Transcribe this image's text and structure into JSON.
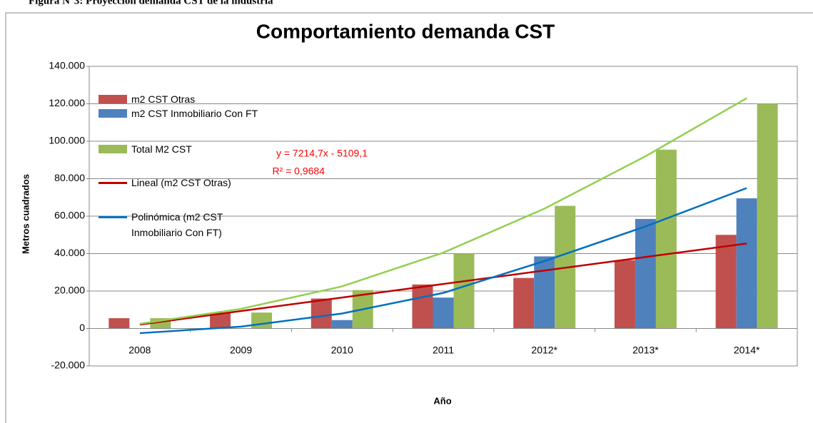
{
  "caption": "Figura N°3: Proyección demanda CST de la industria",
  "chart_data": {
    "type": "bar",
    "title": "Comportamiento demanda CST",
    "x_label": "Año",
    "y_label": "Metros cuadrados",
    "categories": [
      "2008",
      "2009",
      "2010",
      "2011",
      "2012*",
      "2013*",
      "2014*"
    ],
    "series": [
      {
        "name": "m2 CST Otras",
        "color": "#c0504d",
        "values": [
          5500,
          8500,
          16000,
          23500,
          27000,
          36500,
          50000
        ]
      },
      {
        "name": "m2 CST Inmobiliario  Con FT",
        "color": "#4f81bd",
        "values": [
          0,
          0,
          4500,
          16500,
          38500,
          58500,
          69500
        ]
      },
      {
        "name": "Total M2 CST",
        "color": "#9bbb59",
        "values": [
          5500,
          8500,
          20500,
          40000,
          65500,
          95500,
          120000
        ]
      }
    ],
    "trendlines": [
      {
        "name": "Lineal (m2 CST Otras)",
        "color": "#c00000",
        "values": [
          2106,
          9320,
          16535,
          23750,
          30964,
          38179,
          45394
        ]
      },
      {
        "name": "Polinómica (m2 CST Inmobiliario Con FT)",
        "color": "#0070c0",
        "values": [
          -2500,
          1000,
          8000,
          19000,
          36000,
          54500,
          75000
        ]
      },
      {
        "color": "#92d050",
        "values": [
          2500,
          10500,
          22500,
          40500,
          64000,
          92000,
          123000
        ]
      }
    ],
    "annotations": [
      "y = 7214,7x - 5109,1",
      "R² = 0,9684"
    ],
    "ylim": [
      -20000,
      140000
    ],
    "yticks": [
      {
        "value": -20000,
        "label": "-20.000"
      },
      0,
      {
        "value": 20000,
        "label": "20.000"
      },
      {
        "value": 40000,
        "label": "40.000"
      },
      {
        "value": 60000,
        "label": "60.000"
      },
      {
        "value": 80000,
        "label": "80.000"
      },
      {
        "value": 100000,
        "label": "100.000"
      },
      {
        "value": 120000,
        "label": "120.000"
      },
      {
        "value": 140000,
        "label": "140.000"
      }
    ],
    "grid": true
  }
}
